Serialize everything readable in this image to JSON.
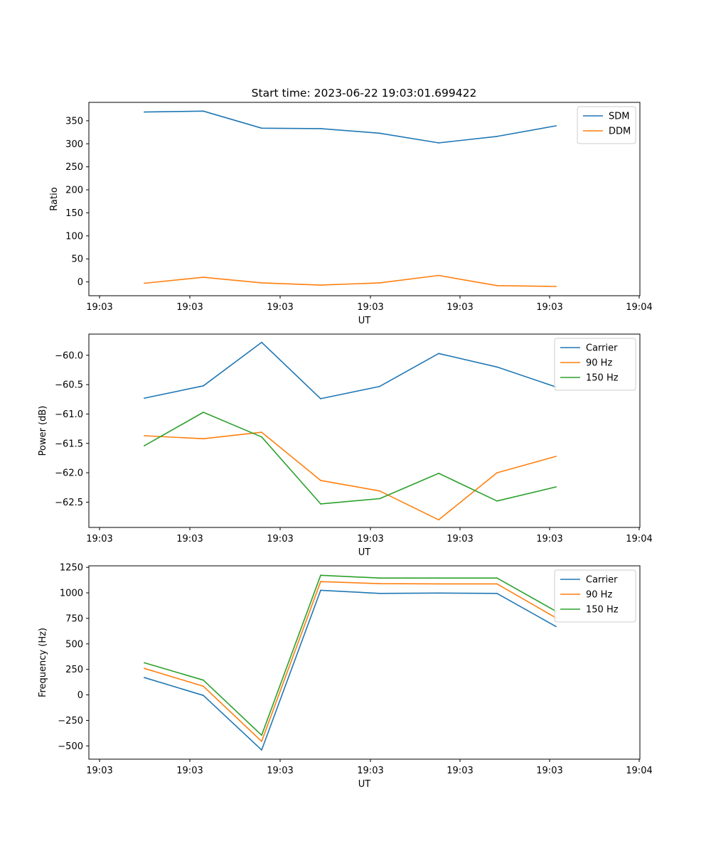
{
  "chart_data": [
    {
      "type": "line",
      "title": "Start time: 2023-06-22 19:03:01.699422",
      "xlabel": "UT",
      "ylabel": "Ratio",
      "xtick_labels": [
        "19:03",
        "19:03",
        "19:03",
        "19:03",
        "19:03",
        "19:03",
        "19:04"
      ],
      "yticks": [
        0,
        50,
        100,
        150,
        200,
        250,
        300,
        350
      ],
      "ylim": [
        -30,
        390
      ],
      "legend_position": "top-right",
      "x": [
        1,
        2,
        3,
        4,
        5,
        6,
        7,
        8
      ],
      "series": [
        {
          "name": "SDM",
          "color": "#1f77b4",
          "values": [
            369,
            371,
            334,
            333,
            323,
            302,
            316,
            339
          ]
        },
        {
          "name": "DDM",
          "color": "#ff7f0e",
          "values": [
            -3,
            10,
            -2,
            -7,
            -2,
            14,
            -8,
            -10
          ]
        }
      ]
    },
    {
      "type": "line",
      "xlabel": "UT",
      "ylabel": "Power (dB)",
      "xtick_labels": [
        "19:03",
        "19:03",
        "19:03",
        "19:03",
        "19:03",
        "19:03",
        "19:04"
      ],
      "yticks": [
        -62.5,
        -62.0,
        -61.5,
        -61.0,
        -60.5,
        -60.0
      ],
      "ytick_labels": [
        "−62.5",
        "−62.0",
        "−61.5",
        "−61.0",
        "−60.5",
        "−60.0"
      ],
      "ylim": [
        -62.93,
        -59.64
      ],
      "legend_position": "top-right",
      "x": [
        1,
        2,
        3,
        4,
        5,
        6,
        7,
        8
      ],
      "series": [
        {
          "name": "Carrier",
          "color": "#1f77b4",
          "values": [
            -60.73,
            -60.52,
            -59.78,
            -60.74,
            -60.53,
            -59.97,
            -60.2,
            -60.54
          ]
        },
        {
          "name": "90 Hz",
          "color": "#ff7f0e",
          "values": [
            -61.37,
            -61.42,
            -61.31,
            -62.13,
            -62.31,
            -62.8,
            -62.0,
            -61.72
          ]
        },
        {
          "name": "150 Hz",
          "color": "#2ca02c",
          "values": [
            -61.54,
            -60.97,
            -61.39,
            -62.53,
            -62.44,
            -62.01,
            -62.48,
            -62.24
          ]
        }
      ]
    },
    {
      "type": "line",
      "xlabel": "UT",
      "ylabel": "Frequency (Hz)",
      "xtick_labels": [
        "19:03",
        "19:03",
        "19:03",
        "19:03",
        "19:03",
        "19:03",
        "19:04"
      ],
      "yticks": [
        -500,
        -250,
        0,
        250,
        500,
        750,
        1000,
        1250
      ],
      "ytick_labels": [
        "−500",
        "−250",
        "0",
        "250",
        "500",
        "750",
        "1000",
        "1250"
      ],
      "ylim": [
        -630,
        1265
      ],
      "legend_position": "top-right",
      "x": [
        1,
        2,
        3,
        4,
        5,
        6,
        7,
        8
      ],
      "series": [
        {
          "name": "Carrier",
          "color": "#1f77b4",
          "values": [
            170,
            -5,
            -540,
            1025,
            995,
            998,
            995,
            670
          ]
        },
        {
          "name": "90 Hz",
          "color": "#ff7f0e",
          "values": [
            260,
            85,
            -455,
            1110,
            1090,
            1088,
            1088,
            755
          ]
        },
        {
          "name": "150 Hz",
          "color": "#2ca02c",
          "values": [
            315,
            145,
            -395,
            1172,
            1145,
            1145,
            1145,
            820
          ]
        }
      ]
    }
  ]
}
